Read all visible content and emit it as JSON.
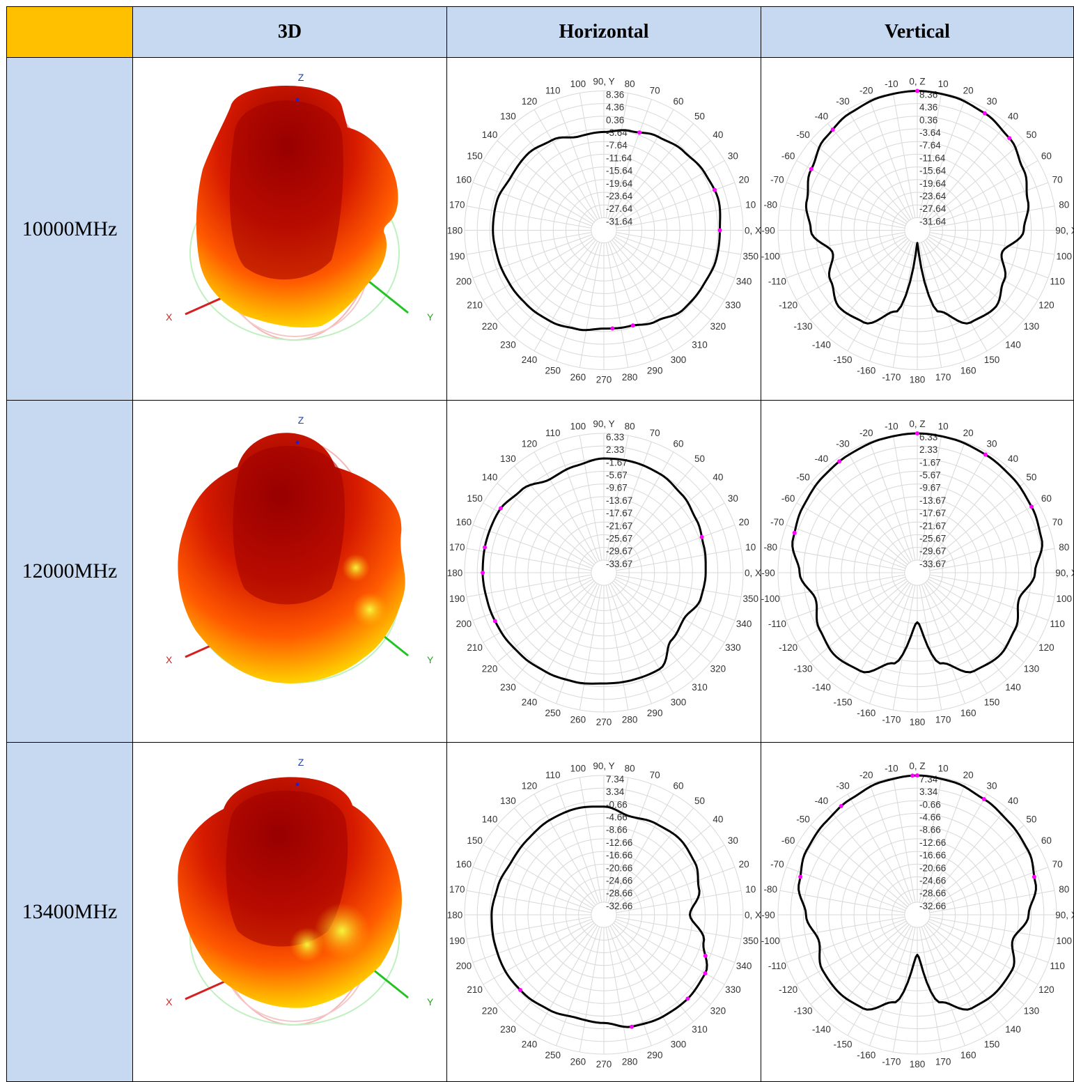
{
  "header": {
    "col_3d": "3D",
    "col_horizontal": "Horizontal",
    "col_vertical": "Vertical"
  },
  "colors": {
    "corner": "#ffc000",
    "header_bg": "#c6d9f1",
    "trace": "#000000",
    "marker": "#ff00ff",
    "grid": "#d8d8d8"
  },
  "axis_labels_3d": {
    "z": "Z",
    "x": "X",
    "y": "Y"
  },
  "rows": [
    {
      "label": "10000MHz"
    },
    {
      "label": "12000MHz"
    },
    {
      "label": "13400MHz"
    }
  ],
  "chart_data": [
    {
      "type": "polar",
      "id": "h-10000",
      "plane": "Horizontal",
      "frequency": "10000MHz",
      "angle_labels": [
        "0, X",
        "10",
        "20",
        "30",
        "40",
        "50",
        "60",
        "70",
        "80",
        "90, Y",
        "100",
        "110",
        "120",
        "130",
        "140",
        "150",
        "160",
        "170",
        "180",
        "190",
        "200",
        "210",
        "220",
        "230",
        "240",
        "250",
        "260",
        "270",
        "280",
        "290",
        "300",
        "310",
        "320",
        "330",
        "340",
        "350"
      ],
      "radial_ticks": [
        "8.36",
        "4.36",
        "0.36",
        "-3.64",
        "-7.64",
        "-11.64",
        "-15.64",
        "-19.64",
        "-23.64",
        "-27.64",
        "-31.64"
      ],
      "rlim": [
        -35.64,
        8.36
      ],
      "angles_deg": [
        0,
        15,
        30,
        45,
        60,
        75,
        90,
        105,
        120,
        135,
        150,
        165,
        180,
        195,
        210,
        225,
        240,
        255,
        270,
        285,
        300,
        315,
        330,
        345
      ],
      "values_dbi": [
        1.0,
        1.8,
        1.0,
        -0.2,
        -1.5,
        -3.2,
        -4.6,
        -5.0,
        -2.8,
        -1.6,
        -1.8,
        -0.6,
        -0.6,
        -1.0,
        -1.4,
        -1.8,
        -2.3,
        -3.3,
        -4.6,
        -4.3,
        -2.5,
        -0.2,
        0.2,
        1.0
      ],
      "markers_deg": [
        0,
        20,
        70,
        275,
        287
      ]
    },
    {
      "type": "polar",
      "id": "v-10000",
      "plane": "Vertical",
      "frequency": "10000MHz",
      "angle_labels": [
        "0, Z",
        "10",
        "20",
        "30",
        "40",
        "50",
        "60",
        "70",
        "80",
        "90, X",
        "100",
        "110",
        "120",
        "130",
        "140",
        "150",
        "160",
        "170",
        "180",
        "-170",
        "-160",
        "-150",
        "-140",
        "-130",
        "-120",
        "-110",
        "-100",
        "-90",
        "-80",
        "-70",
        "-60",
        "-50",
        "-40",
        "-30",
        "-20",
        "-10"
      ],
      "radial_ticks": [
        "8.36",
        "4.36",
        "0.36",
        "-3.64",
        "-7.64",
        "-11.64",
        "-15.64",
        "-19.64",
        "-23.64",
        "-27.64",
        "-31.64"
      ],
      "rlim": [
        -35.64,
        8.36
      ],
      "angles_deg": [
        0,
        15,
        30,
        45,
        60,
        75,
        90,
        105,
        120,
        135,
        150,
        165,
        180,
        195,
        210,
        225,
        240,
        255,
        270,
        285,
        300,
        315,
        330,
        345
      ],
      "values_dbi": [
        8.36,
        8.0,
        7.0,
        5.5,
        3.0,
        0.5,
        -2.0,
        -8.0,
        -4.0,
        -1.0,
        -2.0,
        -9.0,
        -31.64,
        -9.0,
        -2.0,
        -1.0,
        -4.0,
        -8.0,
        -2.0,
        0.5,
        3.0,
        5.5,
        7.0,
        8.0
      ],
      "markers_deg": [
        0,
        30,
        45,
        -40,
        -60
      ]
    },
    {
      "type": "polar",
      "id": "h-12000",
      "plane": "Horizontal",
      "frequency": "12000MHz",
      "angle_labels": [
        "0, X",
        "10",
        "20",
        "30",
        "40",
        "50",
        "60",
        "70",
        "80",
        "90, Y",
        "100",
        "110",
        "120",
        "130",
        "140",
        "150",
        "160",
        "170",
        "180",
        "190",
        "200",
        "210",
        "220",
        "230",
        "240",
        "250",
        "260",
        "270",
        "280",
        "290",
        "300",
        "310",
        "320",
        "330",
        "340",
        "350"
      ],
      "radial_ticks": [
        "6.33",
        "2.33",
        "-1.67",
        "-5.67",
        "-9.67",
        "-13.67",
        "-17.67",
        "-21.67",
        "-25.67",
        "-29.67",
        "-33.67"
      ],
      "rlim": [
        -37.67,
        6.33
      ],
      "angles_deg": [
        0,
        15,
        30,
        45,
        60,
        75,
        90,
        105,
        120,
        135,
        150,
        165,
        180,
        195,
        210,
        225,
        240,
        255,
        270,
        285,
        300,
        315,
        330,
        345
      ],
      "values_dbi": [
        -5.5,
        -5.0,
        -4.0,
        -2.8,
        -1.8,
        -1.5,
        -1.6,
        -2.8,
        -3.6,
        -0.8,
        0.8,
        0.8,
        0.6,
        0.2,
        -0.2,
        -0.8,
        -1.4,
        -2.0,
        -2.7,
        -2.6,
        -2.5,
        -7.5,
        -8.5,
        -6.0
      ],
      "markers_deg": [
        20,
        148,
        168,
        180,
        204
      ]
    },
    {
      "type": "polar",
      "id": "v-12000",
      "plane": "Vertical",
      "frequency": "12000MHz",
      "angle_labels": [
        "0, Z",
        "10",
        "20",
        "30",
        "40",
        "50",
        "60",
        "70",
        "80",
        "90, X",
        "100",
        "110",
        "120",
        "130",
        "140",
        "150",
        "160",
        "170",
        "180",
        "-170",
        "-160",
        "-150",
        "-140",
        "-130",
        "-120",
        "-110",
        "-100",
        "-90",
        "-80",
        "-70",
        "-60",
        "-50",
        "-40",
        "-30",
        "-20",
        "-10"
      ],
      "radial_ticks": [
        "6.33",
        "2.33",
        "-1.67",
        "-5.67",
        "-9.67",
        "-13.67",
        "-17.67",
        "-21.67",
        "-25.67",
        "-29.67",
        "-33.67"
      ],
      "rlim": [
        -37.67,
        6.33
      ],
      "angles_deg": [
        0,
        15,
        30,
        45,
        60,
        75,
        90,
        105,
        120,
        135,
        150,
        165,
        180,
        195,
        210,
        225,
        240,
        255,
        270,
        285,
        300,
        315,
        330,
        345
      ],
      "values_dbi": [
        6.33,
        6.0,
        5.4,
        4.8,
        4.0,
        3.0,
        -0.5,
        -4.5,
        -2.0,
        -0.8,
        -1.8,
        -8.0,
        -22.0,
        -8.0,
        -1.8,
        -0.8,
        -2.0,
        -4.5,
        -0.5,
        3.0,
        4.0,
        4.8,
        5.4,
        6.0
      ],
      "markers_deg": [
        0,
        30,
        60,
        -35,
        -72
      ]
    },
    {
      "type": "polar",
      "id": "h-13400",
      "plane": "Horizontal",
      "frequency": "13400MHz",
      "angle_labels": [
        "0, X",
        "10",
        "20",
        "30",
        "40",
        "50",
        "60",
        "70",
        "80",
        "90, Y",
        "100",
        "110",
        "120",
        "130",
        "140",
        "150",
        "160",
        "170",
        "180",
        "190",
        "200",
        "210",
        "220",
        "230",
        "240",
        "250",
        "260",
        "270",
        "280",
        "290",
        "300",
        "310",
        "320",
        "330",
        "340",
        "350"
      ],
      "radial_ticks": [
        "7.34",
        "3.34",
        "-0.66",
        "-4.66",
        "-8.66",
        "-12.66",
        "-16.66",
        "-20.66",
        "-24.66",
        "-28.66",
        "-32.66"
      ],
      "rlim": [
        -36.66,
        7.34
      ],
      "angles_deg": [
        0,
        15,
        30,
        45,
        60,
        75,
        90,
        105,
        120,
        135,
        150,
        165,
        180,
        195,
        210,
        225,
        240,
        255,
        270,
        285,
        300,
        315,
        330,
        345
      ],
      "values_dbi": [
        -9.5,
        -5.5,
        -3.5,
        -2.8,
        -3.5,
        -4.5,
        -2.5,
        -2.0,
        -2.2,
        -2.8,
        -3.0,
        -2.0,
        -1.2,
        -1.0,
        -0.8,
        -1.2,
        -2.0,
        -3.0,
        -2.5,
        -0.2,
        0.5,
        0.8,
        0.3,
        -4.0
      ],
      "markers_deg": [
        284,
        315,
        330,
        338,
        222
      ]
    },
    {
      "type": "polar",
      "id": "v-13400",
      "plane": "Vertical",
      "frequency": "13400MHz",
      "angle_labels": [
        "0, Z",
        "10",
        "20",
        "30",
        "40",
        "50",
        "60",
        "70",
        "80",
        "90, X",
        "100",
        "110",
        "120",
        "130",
        "140",
        "150",
        "160",
        "170",
        "180",
        "-170",
        "-160",
        "-150",
        "-140",
        "-130",
        "-120",
        "-110",
        "-100",
        "-90",
        "-80",
        "-70",
        "-60",
        "-50",
        "-40",
        "-30",
        "-20",
        "-10"
      ],
      "radial_ticks": [
        "7.34",
        "3.34",
        "-0.66",
        "-4.66",
        "-8.66",
        "-12.66",
        "-16.66",
        "-20.66",
        "-24.66",
        "-28.66",
        "-32.66"
      ],
      "rlim": [
        -36.66,
        7.34
      ],
      "angles_deg": [
        0,
        15,
        30,
        45,
        60,
        75,
        90,
        105,
        120,
        135,
        150,
        165,
        180,
        195,
        210,
        225,
        240,
        255,
        270,
        285,
        300,
        315,
        330,
        345
      ],
      "values_dbi": [
        7.34,
        6.8,
        5.5,
        4.5,
        3.8,
        2.0,
        -1.5,
        -5.5,
        -2.0,
        -1.8,
        -2.5,
        -8.0,
        -24.0,
        -8.0,
        -2.5,
        -1.8,
        -2.0,
        -4.5,
        -1.5,
        2.0,
        3.8,
        4.5,
        5.5,
        6.8
      ],
      "markers_deg": [
        0,
        -2,
        30,
        -35,
        72,
        -72
      ]
    }
  ]
}
